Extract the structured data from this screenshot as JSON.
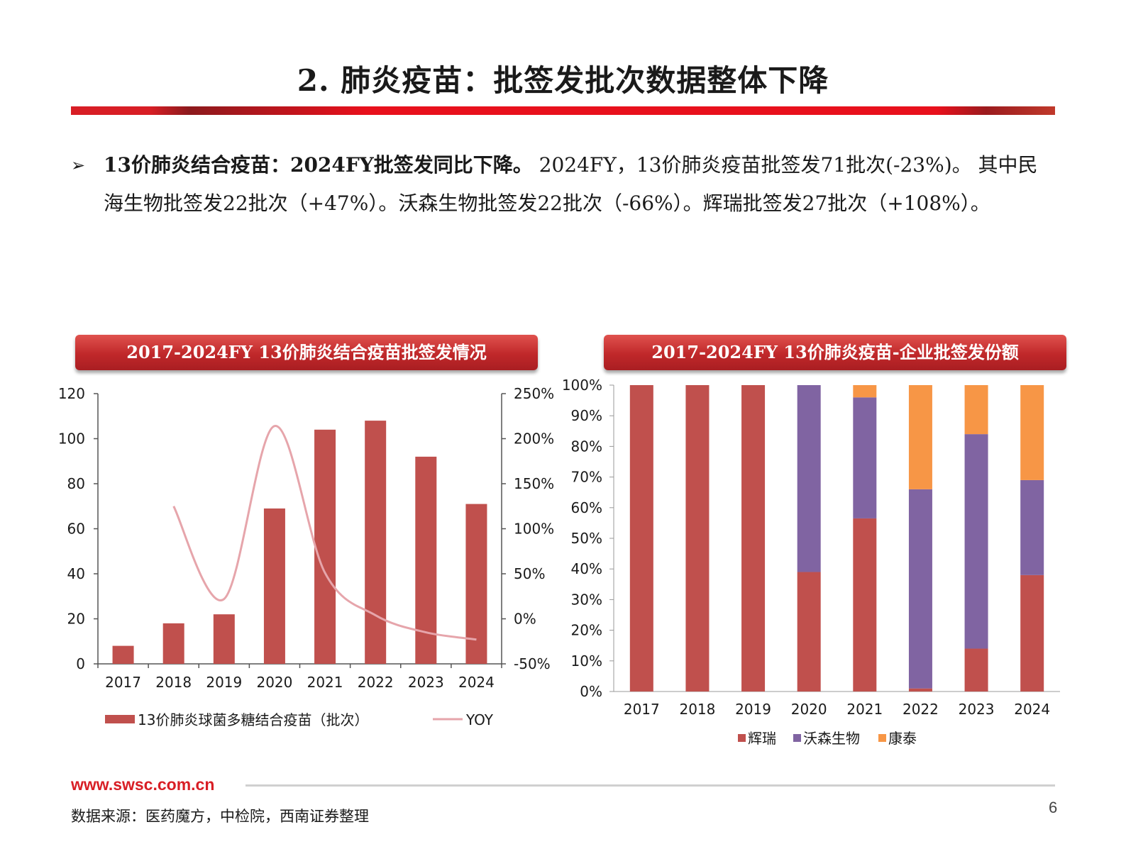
{
  "title": "2. 肺炎疫苗：批签发批次数据整体下降",
  "bullet": {
    "arrow": "➢",
    "bold": "13价肺炎结合疫苗：2024FY批签发同比下降。",
    "text": " 2024FY，13价肺炎疫苗批签发71批次(-23%)。 其中民海生物批签发22批次（+47%）。沃森生物批签发22批次（-66%）。辉瑞批签发27批次（+108%）。"
  },
  "footer": {
    "url": "www.swsc.com.cn",
    "source": "数据来源：医药魔方，中检院，西南证券整理",
    "page": "6"
  },
  "colors": {
    "bar": "#c0504d",
    "yoy": "#e6a5ab",
    "huirui": "#c0504d",
    "wosen": "#8064a2",
    "kangtai": "#f79646",
    "accent": "#d81e25"
  },
  "chart_data": [
    {
      "type": "bar",
      "title": "2017-2024FY 13价肺炎结合疫苗批签发情况",
      "categories": [
        "2017",
        "2018",
        "2019",
        "2020",
        "2021",
        "2022",
        "2023",
        "2024"
      ],
      "series": [
        {
          "name": "13价肺炎球菌多糖结合疫苗（批次）",
          "type": "bar",
          "axis": "left",
          "values": [
            8,
            18,
            22,
            69,
            104,
            108,
            92,
            71
          ]
        },
        {
          "name": "YOY",
          "type": "line",
          "axis": "right",
          "values": [
            null,
            1.25,
            0.22,
            2.14,
            0.51,
            0.04,
            -0.15,
            -0.23
          ]
        }
      ],
      "ylim": [
        0,
        120
      ],
      "y_ticks": [
        "0",
        "20",
        "40",
        "60",
        "80",
        "100",
        "120"
      ],
      "y2lim": [
        -0.5,
        2.5
      ],
      "y2_ticks": [
        "-50%",
        "0%",
        "50%",
        "100%",
        "150%",
        "200%",
        "250%"
      ],
      "legend": "bottom"
    },
    {
      "type": "bar",
      "stacked": true,
      "percent": true,
      "title": "2017-2024FY 13价肺炎疫苗-企业批签发份额",
      "categories": [
        "2017",
        "2018",
        "2019",
        "2020",
        "2021",
        "2022",
        "2023",
        "2024"
      ],
      "series": [
        {
          "name": "辉瑞",
          "values": [
            1.0,
            1.0,
            1.0,
            0.39,
            0.565,
            0.01,
            0.14,
            0.38
          ]
        },
        {
          "name": "沃森生物",
          "values": [
            0,
            0,
            0,
            0.61,
            0.395,
            0.65,
            0.7,
            0.31
          ]
        },
        {
          "name": "康泰",
          "values": [
            0,
            0,
            0,
            0,
            0.04,
            0.34,
            0.16,
            0.31
          ]
        }
      ],
      "ylim": [
        0,
        1
      ],
      "y_ticks": [
        "0%",
        "10%",
        "20%",
        "30%",
        "40%",
        "50%",
        "60%",
        "70%",
        "80%",
        "90%",
        "100%"
      ],
      "legend": "bottom"
    }
  ]
}
